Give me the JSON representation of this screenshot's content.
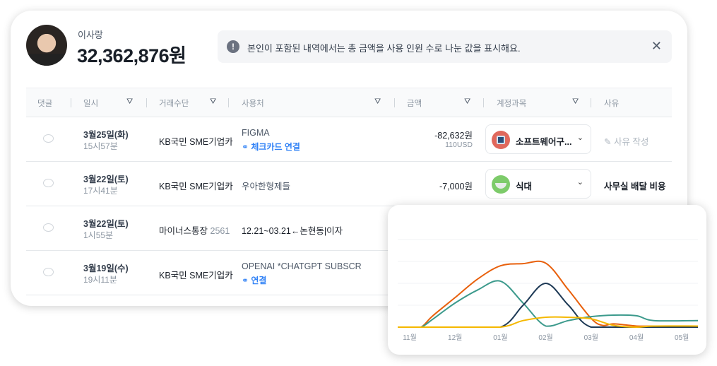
{
  "user": {
    "name": "이사랑",
    "total": "32,362,876원"
  },
  "notice": {
    "icon": "info-icon",
    "text": "본인이 포함된 내역에서는 총 금액을 사용 인원 수로 나눈 값을 표시해요.",
    "close": "✕"
  },
  "table": {
    "columns": [
      "댓글",
      "일시",
      "거래수단",
      "사용처",
      "금액",
      "계정과목",
      "사유"
    ],
    "rows": [
      {
        "date": "3월25일(화)",
        "time": "15시57분",
        "method": "KB국민 SME기업카",
        "method_num": "",
        "merchant": "FIGMA",
        "link": "체크카드 연결",
        "amount": "-82,632원",
        "sub_amount": "110USD",
        "account": "소프트웨어구...",
        "account_color": "#e0685c",
        "reason": "사유 작성",
        "reason_placeholder": true
      },
      {
        "date": "3월22일(토)",
        "time": "17시41분",
        "method": "KB국민 SME기업카",
        "method_num": "",
        "merchant": "우아한형제들",
        "link": "",
        "amount": "-7,000원",
        "sub_amount": "",
        "account": "식대",
        "account_color": "#7dcb6a",
        "reason": "사무실 배달 비용",
        "reason_placeholder": false
      },
      {
        "date": "3월22일(토)",
        "time": "1시55분",
        "method": "마이너스통장",
        "method_num": "2561",
        "merchant": "12.21~03.21←논현동|이자",
        "link": "",
        "amount": "",
        "sub_amount": "",
        "account": "",
        "reason": ""
      },
      {
        "date": "3월19일(수)",
        "time": "19시11분",
        "method": "KB국민 SME기업카",
        "method_num": "",
        "merchant": "OPENAI *CHATGPT SUBSCR",
        "link": "연결",
        "amount": "",
        "sub_amount": "",
        "account": "",
        "reason": ""
      }
    ]
  },
  "chart_data": {
    "type": "line",
    "categories": [
      "11월",
      "12월",
      "01월",
      "02월",
      "03월",
      "04월",
      "05월"
    ],
    "grid": true,
    "ylim": [
      0,
      4
    ],
    "series": [
      {
        "color": "#e8600c",
        "x": [
          0,
          0.25,
          0.5,
          1,
          1.5,
          2,
          2.5,
          3,
          3.5,
          4,
          4.25,
          4.5,
          5,
          5.38
        ],
        "values": [
          0,
          0,
          0.5,
          1.35,
          2.2,
          2.8,
          2.9,
          2.92,
          1.7,
          0.4,
          0.08,
          0.15,
          0.05,
          0.05
        ]
      },
      {
        "color": "#3c9a8c",
        "x": [
          0,
          0.25,
          0.5,
          1,
          1.5,
          2,
          2.5,
          3,
          3.5,
          4,
          4.5,
          5,
          5.38
        ],
        "values": [
          0,
          0,
          0.35,
          1.1,
          1.7,
          2.1,
          1.1,
          0.05,
          0.3,
          0.48,
          0.55,
          0.52,
          0.3
        ]
      },
      {
        "color": "#1e3a56",
        "x": [
          0,
          1,
          2,
          2.5,
          3,
          3.5,
          4,
          5,
          5.38
        ],
        "values": [
          0,
          0,
          0,
          1.0,
          2.0,
          1.0,
          0,
          0,
          0
        ]
      },
      {
        "color": "#f5b800",
        "x": [
          0,
          1,
          2,
          2.5,
          3,
          3.5,
          4,
          4.5,
          5,
          5.38
        ],
        "values": [
          0,
          0,
          0,
          0.3,
          0.45,
          0.45,
          0.38,
          0.08,
          0,
          0.05
        ]
      }
    ]
  }
}
